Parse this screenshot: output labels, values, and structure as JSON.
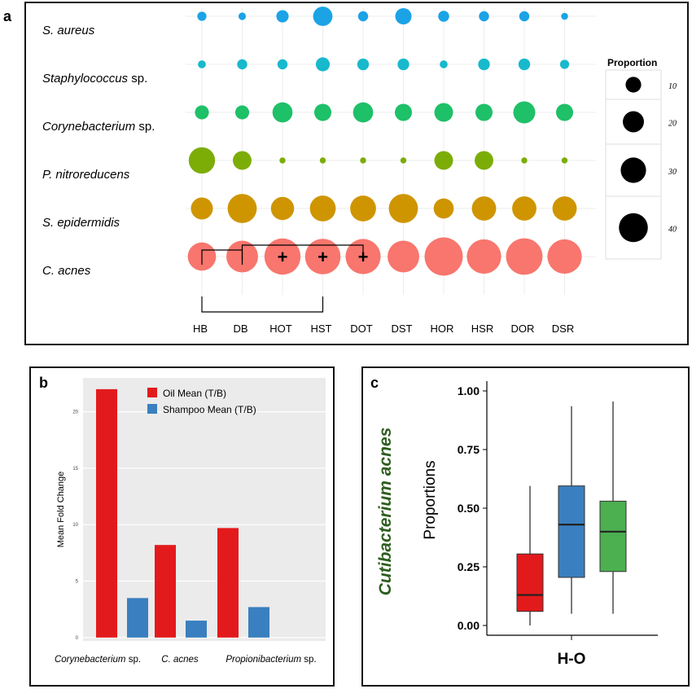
{
  "panel_labels": {
    "a": "a",
    "b": "b",
    "c": "c"
  },
  "legend_a": {
    "title": "Proportion",
    "sizes": [
      10,
      20,
      30,
      40
    ]
  },
  "legend_b": [
    {
      "label": "Oil Mean (T/B)",
      "color": "#e31a1c"
    },
    {
      "label": "Shampoo Mean (T/B)",
      "color": "#3a7fbf"
    }
  ],
  "chart_data": [
    {
      "type": "scatter",
      "subtype": "bubble",
      "x_categories": [
        "HB",
        "DB",
        "HOT",
        "HST",
        "DOT",
        "DST",
        "HOR",
        "HSR",
        "DOR",
        "DSR"
      ],
      "series": [
        {
          "name": "S. aureus",
          "italic": true,
          "color": "#1ba3e6",
          "values": [
            1.8,
            1,
            4,
            12,
            2.4,
            8,
            3,
            2.4,
            2.4,
            0.8
          ]
        },
        {
          "name": "Staphylococcus sp.",
          "italic": true,
          "italic_genus_only": true,
          "color": "#18b9cc",
          "values": [
            1.2,
            2.4,
            2.4,
            5.5,
            3.5,
            3.5,
            1.2,
            3.5,
            3.5,
            1.8
          ]
        },
        {
          "name": "Corynebacterium sp.",
          "italic": true,
          "italic_genus_only": true,
          "color": "#1ec068",
          "values": [
            5.5,
            5.5,
            13,
            9,
            13,
            9,
            11,
            9,
            16,
            9
          ]
        },
        {
          "name": "P. nitroreducens",
          "italic": true,
          "color": "#7cad07",
          "values": [
            24,
            11,
            0.5,
            0.5,
            0.5,
            0.5,
            11,
            11,
            0.5,
            0.5
          ]
        },
        {
          "name": "S. epidermidis",
          "italic": true,
          "color": "#cf9500",
          "values": [
            16,
            30,
            18,
            23,
            23,
            30,
            13,
            20,
            20,
            20
          ]
        },
        {
          "name": "C. acnes",
          "italic": true,
          "color": "#f8766d",
          "values": [
            28,
            36,
            48,
            46,
            45,
            36,
            54,
            43,
            49,
            43
          ]
        }
      ],
      "markers": [
        {
          "category": "HOT",
          "series": "C. acnes",
          "symbol": "+"
        },
        {
          "category": "HST",
          "series": "C. acnes",
          "symbol": "+"
        },
        {
          "category": "DOT",
          "series": "C. acnes",
          "symbol": "+"
        }
      ],
      "brackets_top": [
        [
          "HB",
          "DB"
        ],
        [
          "DB",
          "DOT"
        ]
      ],
      "brackets_bottom": [
        [
          "HB",
          "HST"
        ]
      ]
    },
    {
      "type": "bar",
      "categories": [
        {
          "italic": "Corynebacterium",
          "plain": " sp."
        },
        {
          "italic": "C. acnes",
          "plain": ""
        },
        {
          "italic": "Propionibacterium",
          "plain": " sp."
        }
      ],
      "series": [
        {
          "name": "Oil Mean (T/B)",
          "color": "#e31a1c",
          "values": [
            22,
            8.2,
            9.7
          ]
        },
        {
          "name": "Shampoo Mean (T/B)",
          "color": "#3a7fbf",
          "values": [
            3.5,
            1.5,
            2.7
          ]
        }
      ],
      "ylabel": "Mean Fold Change",
      "ylim": [
        -0.3,
        23
      ],
      "yticks": [
        "0",
        "5",
        "10",
        "15",
        "20"
      ],
      "grid": true
    },
    {
      "type": "box",
      "title": "Cutibacterium acnes",
      "xlabel": "H-O",
      "ylabel": "Proportions",
      "ylim": [
        0,
        1
      ],
      "yticks": [
        "0.00",
        "0.25",
        "0.50",
        "0.75",
        "1.00"
      ],
      "boxes": [
        {
          "color": "#e31a1c",
          "min": 0.0,
          "q1": 0.06,
          "median": 0.13,
          "q3": 0.305,
          "max": 0.595
        },
        {
          "color": "#3a7fbf",
          "min": 0.05,
          "q1": 0.205,
          "median": 0.43,
          "q3": 0.595,
          "max": 0.935
        },
        {
          "color": "#4caf50",
          "min": 0.05,
          "q1": 0.23,
          "median": 0.4,
          "q3": 0.53,
          "max": 0.955
        }
      ]
    }
  ]
}
